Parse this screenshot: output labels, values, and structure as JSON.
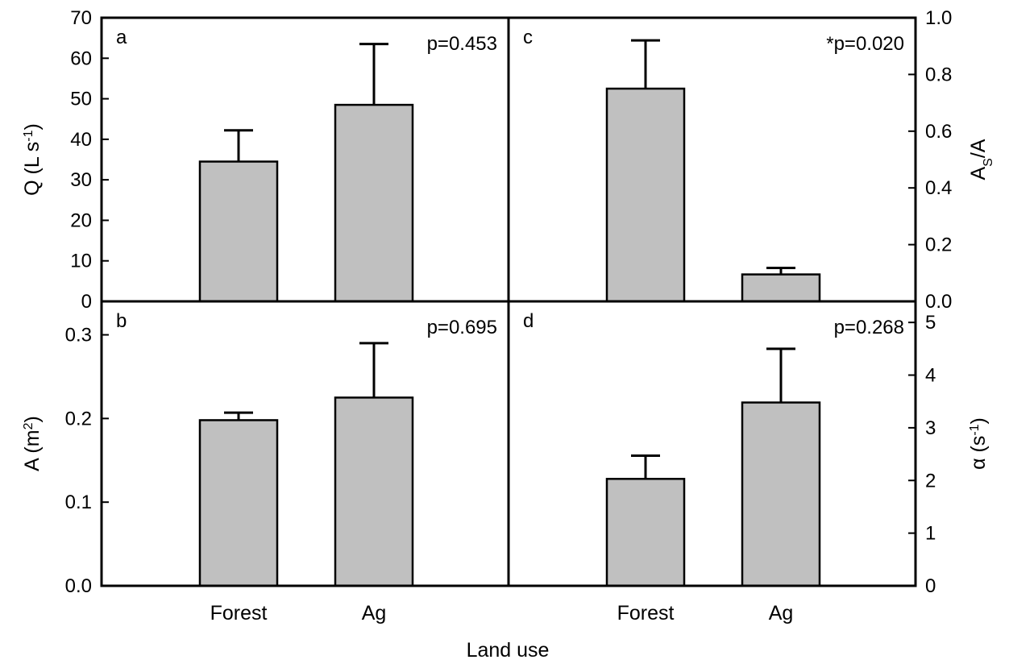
{
  "colors": {
    "bar_fill": "#c0c0c0",
    "stroke": "#000000",
    "background": "#ffffff"
  },
  "xlabel": "Land use",
  "chart_data": [
    {
      "type": "bar",
      "panel": "a",
      "pvalue": "p=0.453",
      "categories": [
        "Forest",
        "Ag"
      ],
      "values": [
        34.5,
        48.5
      ],
      "error_upper": [
        42.2,
        63.5
      ],
      "ylabel": {
        "base": "Q (L s",
        "sup": "-1",
        "end": ")"
      },
      "ylim": [
        0,
        70
      ],
      "yticks": [
        0,
        10,
        20,
        30,
        40,
        50,
        60,
        70
      ],
      "ytick_labels": [
        "0",
        "10",
        "20",
        "30",
        "40",
        "50",
        "60",
        "70"
      ],
      "yaxis_side": "left",
      "show_x_labels": false
    },
    {
      "type": "bar",
      "panel": "c",
      "pvalue": "*p=0.020",
      "categories": [
        "Forest",
        "Ag"
      ],
      "values": [
        0.75,
        0.095
      ],
      "error_upper": [
        0.92,
        0.118
      ],
      "ylabel": {
        "base": "A",
        "sub": "S",
        "end": "/A"
      },
      "ylim": [
        0,
        1.0
      ],
      "yticks": [
        0,
        0.2,
        0.4,
        0.6,
        0.8,
        1.0
      ],
      "ytick_labels": [
        "0.0",
        "0.2",
        "0.4",
        "0.6",
        "0.8",
        "1.0"
      ],
      "yaxis_side": "right",
      "show_x_labels": false
    },
    {
      "type": "bar",
      "panel": "b",
      "pvalue": "p=0.695",
      "categories": [
        "Forest",
        "Ag"
      ],
      "values": [
        0.198,
        0.225
      ],
      "error_upper": [
        0.207,
        0.29
      ],
      "ylabel": {
        "base": "A (m",
        "sup": "2",
        "end": ")"
      },
      "ylim": [
        0,
        0.34
      ],
      "yticks": [
        0,
        0.1,
        0.2,
        0.3
      ],
      "ytick_labels": [
        "0.0",
        "0.1",
        "0.2",
        "0.3"
      ],
      "yaxis_side": "left",
      "show_x_labels": true
    },
    {
      "type": "bar",
      "panel": "d",
      "pvalue": "p=0.268",
      "categories": [
        "Forest",
        "Ag"
      ],
      "values": [
        2.03,
        3.48
      ],
      "error_upper": [
        2.47,
        4.5
      ],
      "ylabel": {
        "base": "α (s",
        "sup": "-1",
        "end": ")"
      },
      "ylim": [
        0,
        5.4
      ],
      "yticks": [
        0,
        1,
        2,
        3,
        4,
        5
      ],
      "ytick_labels": [
        "0",
        "1",
        "2",
        "3",
        "4",
        "5"
      ],
      "yaxis_side": "right",
      "show_x_labels": true
    }
  ]
}
